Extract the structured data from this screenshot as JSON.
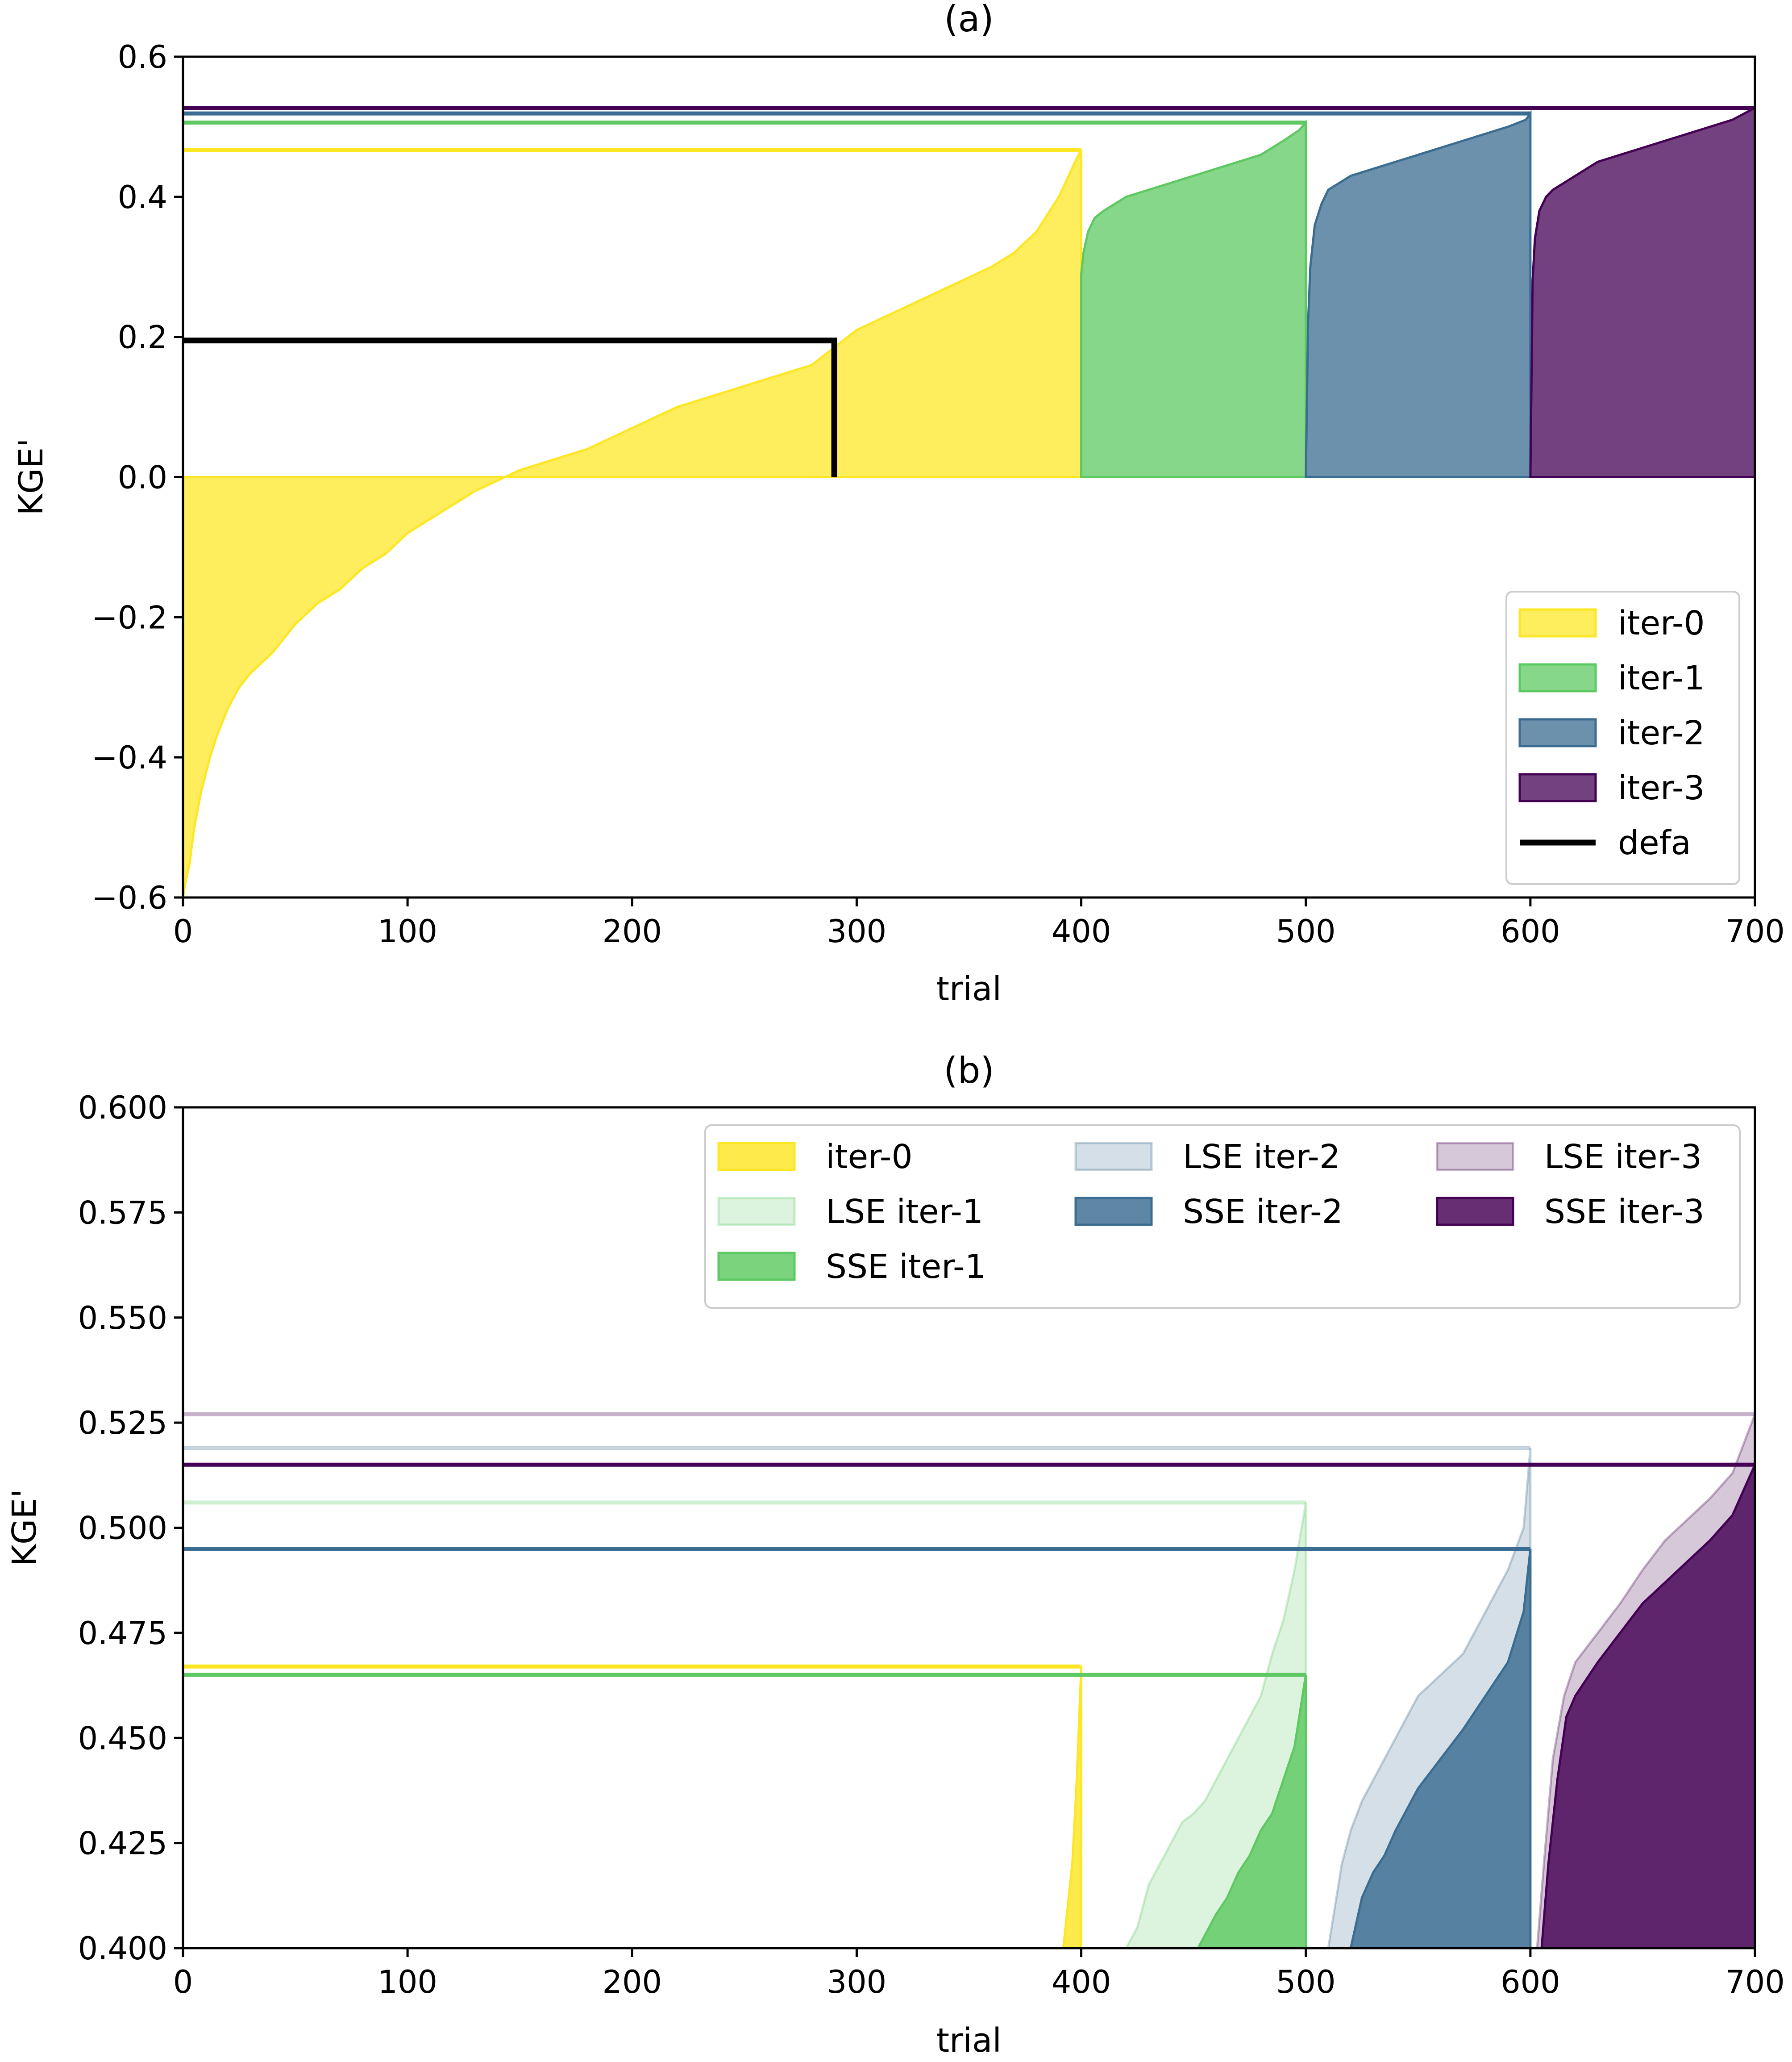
{
  "chart_data": [
    {
      "type": "area",
      "title": "(a)",
      "xlabel": "trial",
      "ylabel": "KGE'",
      "xlim": [
        0,
        700
      ],
      "ylim": [
        -0.6,
        0.6
      ],
      "xticks": [
        "0",
        "100",
        "200",
        "300",
        "400",
        "500",
        "600",
        "700"
      ],
      "yticks": [
        "−0.6",
        "−0.4",
        "−0.2",
        "0.0",
        "0.2",
        "0.4",
        "0.6"
      ],
      "legend_position": "lower-right",
      "grid": false,
      "series": [
        {
          "name": "iter-0",
          "color": "#fde725",
          "x_range": [
            0,
            400
          ],
          "profile": [
            [
              0,
              -0.6
            ],
            [
              1,
              -0.58
            ],
            [
              3,
              -0.55
            ],
            [
              5,
              -0.5
            ],
            [
              8,
              -0.45
            ],
            [
              12,
              -0.4
            ],
            [
              15,
              -0.37
            ],
            [
              20,
              -0.33
            ],
            [
              25,
              -0.3
            ],
            [
              30,
              -0.28
            ],
            [
              40,
              -0.25
            ],
            [
              50,
              -0.21
            ],
            [
              60,
              -0.18
            ],
            [
              70,
              -0.16
            ],
            [
              80,
              -0.13
            ],
            [
              90,
              -0.11
            ],
            [
              100,
              -0.08
            ],
            [
              110,
              -0.06
            ],
            [
              120,
              -0.04
            ],
            [
              130,
              -0.02
            ],
            [
              140,
              -0.005
            ],
            [
              150,
              0.01
            ],
            [
              160,
              0.02
            ],
            [
              170,
              0.03
            ],
            [
              180,
              0.04
            ],
            [
              200,
              0.07
            ],
            [
              220,
              0.1
            ],
            [
              240,
              0.12
            ],
            [
              260,
              0.14
            ],
            [
              280,
              0.16
            ],
            [
              300,
              0.21
            ],
            [
              320,
              0.24
            ],
            [
              340,
              0.27
            ],
            [
              360,
              0.3
            ],
            [
              370,
              0.32
            ],
            [
              380,
              0.35
            ],
            [
              390,
              0.4
            ],
            [
              398,
              0.455
            ],
            [
              400,
              0.467
            ]
          ],
          "best_line": 0.467
        },
        {
          "name": "iter-1",
          "color": "#5ec962",
          "x_range": [
            400,
            500
          ],
          "profile": [
            [
              400,
              0.29
            ],
            [
              401,
              0.32
            ],
            [
              403,
              0.35
            ],
            [
              406,
              0.37
            ],
            [
              410,
              0.38
            ],
            [
              415,
              0.39
            ],
            [
              420,
              0.4
            ],
            [
              430,
              0.41
            ],
            [
              440,
              0.42
            ],
            [
              450,
              0.43
            ],
            [
              460,
              0.44
            ],
            [
              470,
              0.45
            ],
            [
              480,
              0.46
            ],
            [
              490,
              0.48
            ],
            [
              497,
              0.495
            ],
            [
              500,
              0.506
            ]
          ],
          "best_line": 0.506
        },
        {
          "name": "iter-2",
          "color": "#3b6c91",
          "x_range": [
            500,
            600
          ],
          "profile": [
            [
              500,
              0.0
            ],
            [
              501,
              0.22
            ],
            [
              502,
              0.3
            ],
            [
              504,
              0.36
            ],
            [
              507,
              0.39
            ],
            [
              510,
              0.41
            ],
            [
              515,
              0.42
            ],
            [
              520,
              0.43
            ],
            [
              530,
              0.44
            ],
            [
              540,
              0.45
            ],
            [
              550,
              0.46
            ],
            [
              560,
              0.47
            ],
            [
              570,
              0.48
            ],
            [
              580,
              0.49
            ],
            [
              590,
              0.5
            ],
            [
              598,
              0.51
            ],
            [
              600,
              0.519
            ]
          ],
          "best_line": 0.519
        },
        {
          "name": "iter-3",
          "color": "#440154",
          "x_range": [
            600,
            700
          ],
          "profile": [
            [
              600,
              0.0
            ],
            [
              601,
              0.28
            ],
            [
              602,
              0.34
            ],
            [
              604,
              0.38
            ],
            [
              607,
              0.4
            ],
            [
              610,
              0.41
            ],
            [
              615,
              0.42
            ],
            [
              620,
              0.43
            ],
            [
              630,
              0.45
            ],
            [
              640,
              0.46
            ],
            [
              650,
              0.47
            ],
            [
              660,
              0.48
            ],
            [
              670,
              0.49
            ],
            [
              680,
              0.5
            ],
            [
              690,
              0.51
            ],
            [
              700,
              0.527
            ]
          ],
          "best_line": 0.527
        }
      ],
      "reference": {
        "name": "defa",
        "color": "#000000",
        "value": 0.195,
        "x_end": 290
      }
    },
    {
      "type": "area",
      "title": "(b)",
      "xlabel": "trial",
      "ylabel": "KGE'",
      "xlim": [
        0,
        700
      ],
      "ylim": [
        0.4,
        0.6
      ],
      "xticks": [
        "0",
        "100",
        "200",
        "300",
        "400",
        "500",
        "600",
        "700"
      ],
      "yticks": [
        "0.400",
        "0.425",
        "0.450",
        "0.475",
        "0.500",
        "0.525",
        "0.550",
        "0.575",
        "0.600"
      ],
      "legend_position": "upper-right",
      "legend_columns": 3,
      "grid": false,
      "series": [
        {
          "name": "iter-0",
          "color": "#fde725",
          "x_range": [
            0,
            400
          ],
          "profile": [
            [
              392,
              0.4
            ],
            [
              396,
              0.42
            ],
            [
              398,
              0.44
            ],
            [
              400,
              0.467
            ]
          ],
          "best_line": 0.467
        },
        {
          "name": "LSE iter-1",
          "color": "#5ec962",
          "light": true,
          "x_range": [
            400,
            500
          ],
          "profile": [
            [
              420,
              0.4
            ],
            [
              425,
              0.405
            ],
            [
              430,
              0.415
            ],
            [
              435,
              0.42
            ],
            [
              440,
              0.425
            ],
            [
              445,
              0.43
            ],
            [
              450,
              0.432
            ],
            [
              455,
              0.435
            ],
            [
              460,
              0.44
            ],
            [
              465,
              0.445
            ],
            [
              470,
              0.45
            ],
            [
              475,
              0.455
            ],
            [
              480,
              0.46
            ],
            [
              485,
              0.47
            ],
            [
              490,
              0.478
            ],
            [
              495,
              0.49
            ],
            [
              500,
              0.506
            ]
          ],
          "best_line": 0.506
        },
        {
          "name": "SSE iter-1",
          "color": "#5ec962",
          "x_range": [
            400,
            500
          ],
          "profile": [
            [
              452,
              0.4
            ],
            [
              455,
              0.403
            ],
            [
              460,
              0.408
            ],
            [
              465,
              0.412
            ],
            [
              470,
              0.418
            ],
            [
              475,
              0.422
            ],
            [
              480,
              0.428
            ],
            [
              485,
              0.432
            ],
            [
              490,
              0.44
            ],
            [
              495,
              0.448
            ],
            [
              500,
              0.465
            ]
          ],
          "best_line": 0.465
        },
        {
          "name": "LSE iter-2",
          "color": "#3b6c91",
          "light": true,
          "x_range": [
            500,
            600
          ],
          "profile": [
            [
              510,
              0.4
            ],
            [
              513,
              0.41
            ],
            [
              516,
              0.42
            ],
            [
              520,
              0.428
            ],
            [
              525,
              0.435
            ],
            [
              530,
              0.44
            ],
            [
              540,
              0.45
            ],
            [
              550,
              0.46
            ],
            [
              560,
              0.465
            ],
            [
              570,
              0.47
            ],
            [
              580,
              0.48
            ],
            [
              590,
              0.49
            ],
            [
              597,
              0.5
            ],
            [
              600,
              0.519
            ]
          ],
          "best_line": 0.519
        },
        {
          "name": "SSE iter-2",
          "color": "#3b6c91",
          "x_range": [
            500,
            600
          ],
          "profile": [
            [
              520,
              0.4
            ],
            [
              525,
              0.412
            ],
            [
              530,
              0.418
            ],
            [
              535,
              0.422
            ],
            [
              540,
              0.428
            ],
            [
              550,
              0.438
            ],
            [
              560,
              0.445
            ],
            [
              570,
              0.452
            ],
            [
              580,
              0.46
            ],
            [
              590,
              0.468
            ],
            [
              597,
              0.48
            ],
            [
              600,
              0.495
            ]
          ],
          "best_line": 0.495
        },
        {
          "name": "LSE iter-3",
          "color": "#440154",
          "light": true,
          "x_range": [
            600,
            700
          ],
          "profile": [
            [
              603,
              0.4
            ],
            [
              606,
              0.42
            ],
            [
              610,
              0.445
            ],
            [
              615,
              0.46
            ],
            [
              620,
              0.468
            ],
            [
              630,
              0.475
            ],
            [
              640,
              0.482
            ],
            [
              650,
              0.49
            ],
            [
              660,
              0.497
            ],
            [
              670,
              0.502
            ],
            [
              680,
              0.507
            ],
            [
              690,
              0.513
            ],
            [
              700,
              0.527
            ]
          ],
          "best_line": 0.527
        },
        {
          "name": "SSE iter-3",
          "color": "#440154",
          "x_range": [
            600,
            700
          ],
          "profile": [
            [
              605,
              0.4
            ],
            [
              608,
              0.42
            ],
            [
              612,
              0.44
            ],
            [
              616,
              0.455
            ],
            [
              620,
              0.46
            ],
            [
              630,
              0.468
            ],
            [
              640,
              0.475
            ],
            [
              650,
              0.482
            ],
            [
              660,
              0.487
            ],
            [
              670,
              0.492
            ],
            [
              680,
              0.497
            ],
            [
              690,
              0.503
            ],
            [
              700,
              0.515
            ]
          ],
          "best_line": 0.515
        }
      ]
    }
  ]
}
